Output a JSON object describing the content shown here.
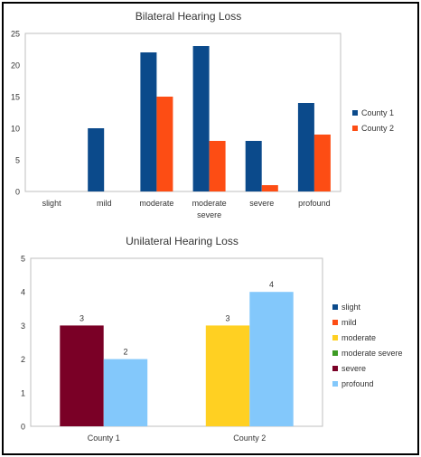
{
  "chart_data": [
    {
      "type": "bar",
      "title": "Bilateral Hearing Loss",
      "categories": [
        [
          "slight"
        ],
        [
          "mild"
        ],
        [
          "moderate"
        ],
        [
          "moderate",
          "severe"
        ],
        [
          "severe"
        ],
        [
          "profound"
        ]
      ],
      "ylim": [
        0,
        25
      ],
      "yticks": [
        0,
        5,
        10,
        15,
        20,
        25
      ],
      "grid": false,
      "legend_position": "right",
      "series": [
        {
          "name": "County 1",
          "color": "#0b4a8b",
          "values": [
            0,
            10,
            22,
            23,
            8,
            14
          ]
        },
        {
          "name": "County 2",
          "color": "#fd4d14",
          "values": [
            0,
            0,
            15,
            8,
            1,
            9
          ]
        }
      ]
    },
    {
      "type": "bar",
      "title": "Unilateral Hearing Loss",
      "categories": [
        [
          "County 1"
        ],
        [
          "County 2"
        ]
      ],
      "ylim": [
        0,
        5
      ],
      "yticks": [
        0,
        1,
        2,
        3,
        4,
        5
      ],
      "grid": false,
      "legend_position": "right",
      "series": [
        {
          "name": "slight",
          "color": "#0b4a8b",
          "values": [
            0,
            0
          ]
        },
        {
          "name": "mild",
          "color": "#fd4d14",
          "values": [
            0,
            0
          ]
        },
        {
          "name": "moderate",
          "color": "#ffd022",
          "values": [
            0,
            3
          ]
        },
        {
          "name": "moderate severe",
          "color": "#3c9b23",
          "values": [
            0,
            0
          ]
        },
        {
          "name": "severe",
          "color": "#7a0026",
          "values": [
            3,
            0
          ]
        },
        {
          "name": "profound",
          "color": "#83c8fb",
          "values": [
            2,
            4
          ]
        }
      ],
      "data_labels": [
        {
          "category": 0,
          "series": 4,
          "text": "3"
        },
        {
          "category": 0,
          "series": 5,
          "text": "2"
        },
        {
          "category": 1,
          "series": 2,
          "text": "3"
        },
        {
          "category": 1,
          "series": 5,
          "text": "4"
        }
      ]
    }
  ]
}
